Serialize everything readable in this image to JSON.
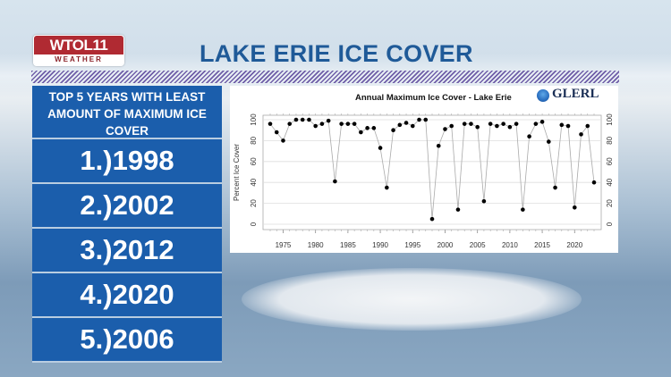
{
  "header": {
    "logo_top": "WTOL11",
    "logo_bottom": "WEATHER",
    "title": "LAKE ERIE ICE COVER"
  },
  "panel": {
    "heading": "TOP 5 YEARS WITH LEAST AMOUNT OF MAXIMUM ICE COVER",
    "ranks": [
      "1.)1998",
      "2.)2002",
      "3.)2012",
      "4.)2020",
      "5.)2006"
    ]
  },
  "colors": {
    "title_blue": "#1f5a98",
    "panel_blue": "#1b5eac",
    "logo_red": "#b02a32",
    "stripe_purple": "#6f5ea8"
  },
  "chart_data": {
    "type": "line",
    "title": "Annual Maximum Ice Cover - Lake Erie",
    "source_logo": "GLERL",
    "xlabel": "",
    "ylabel": "Percent Ice Cover",
    "xlim": [
      1973,
      2023
    ],
    "ylim": [
      0,
      100
    ],
    "x_ticks": [
      1975,
      1980,
      1985,
      1990,
      1995,
      2000,
      2005,
      2010,
      2015,
      2020
    ],
    "y_ticks": [
      0,
      20,
      40,
      60,
      80,
      100
    ],
    "grid": "horizontal",
    "legend": "none",
    "x": [
      1973,
      1974,
      1975,
      1976,
      1977,
      1978,
      1979,
      1980,
      1981,
      1982,
      1983,
      1984,
      1985,
      1986,
      1987,
      1988,
      1989,
      1990,
      1991,
      1992,
      1993,
      1994,
      1995,
      1996,
      1997,
      1998,
      1999,
      2000,
      2001,
      2002,
      2003,
      2004,
      2005,
      2006,
      2007,
      2008,
      2009,
      2010,
      2011,
      2012,
      2013,
      2014,
      2015,
      2016,
      2017,
      2018,
      2019,
      2020,
      2021,
      2022,
      2023
    ],
    "series": [
      {
        "name": "Annual Maximum Ice Cover (%)",
        "values": [
          96,
          88,
          80,
          96,
          100,
          100,
          100,
          94,
          96,
          99,
          41,
          96,
          96,
          96,
          88,
          92,
          92,
          73,
          35,
          90,
          95,
          97,
          94,
          100,
          100,
          5,
          75,
          91,
          94,
          14,
          96,
          96,
          93,
          22,
          96,
          94,
          96,
          93,
          96,
          14,
          84,
          96,
          98,
          79,
          35,
          95,
          94,
          16,
          86,
          94,
          40
        ]
      }
    ]
  }
}
